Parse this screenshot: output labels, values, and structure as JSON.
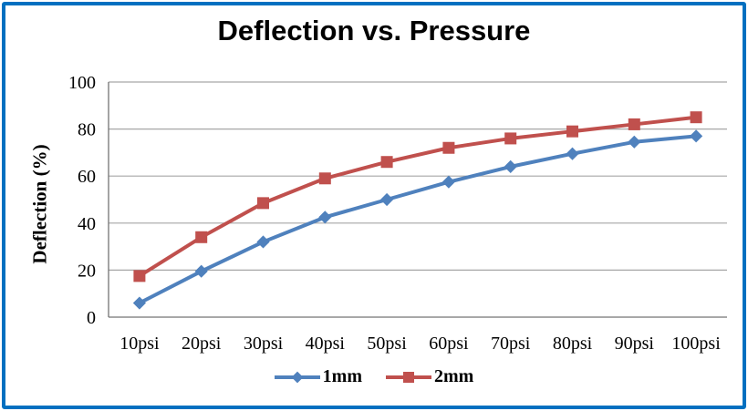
{
  "frame": {
    "background": "#FFFFFF",
    "border_color": "#0070C0"
  },
  "chart_data": {
    "type": "line",
    "title": "Deflection vs. Pressure",
    "xlabel": "",
    "ylabel": "Deflection (%)",
    "categories": [
      "10psi",
      "20psi",
      "30psi",
      "40psi",
      "50psi",
      "60psi",
      "70psi",
      "80psi",
      "90psi",
      "100psi"
    ],
    "series": [
      {
        "name": "1mm",
        "color": "#4F81BD",
        "marker": "diamond",
        "values": [
          6,
          19.5,
          32,
          42.5,
          50,
          57.5,
          64,
          69.5,
          74.5,
          77
        ]
      },
      {
        "name": "2mm",
        "color": "#C0504D",
        "marker": "square",
        "values": [
          17.5,
          34,
          48.5,
          59,
          66,
          72,
          76,
          79,
          82,
          85
        ]
      }
    ],
    "ylim": [
      0,
      100
    ],
    "yticks": [
      0,
      20,
      40,
      60,
      80,
      100
    ],
    "grid": true,
    "legend_position": "bottom",
    "colors": {
      "gridline": "#A6A6A6",
      "axis": "#737373",
      "title_text": "#000000",
      "label_text": "#000000"
    }
  }
}
